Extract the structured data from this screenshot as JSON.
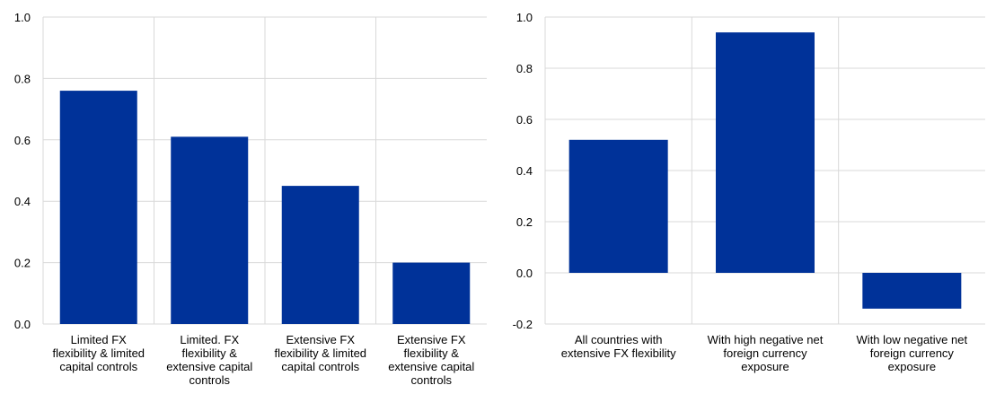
{
  "chart_data": [
    {
      "type": "bar",
      "title": "",
      "xlabel": "",
      "ylabel": "",
      "ylim": [
        0,
        1.0
      ],
      "yticks": [
        "0.0",
        "0.2",
        "0.4",
        "0.6",
        "0.8",
        "1.0"
      ],
      "categories": [
        [
          "Limited FX",
          "flexibility & limited",
          "capital controls"
        ],
        [
          "Limited. FX",
          "flexibility &",
          "extensive capital",
          "controls"
        ],
        [
          "Extensive FX",
          "flexibility & limited",
          "capital controls"
        ],
        [
          "Extensive FX",
          "flexibility &",
          "extensive capital",
          "controls"
        ]
      ],
      "values": [
        0.76,
        0.61,
        0.45,
        0.2
      ],
      "bar_color": "#003299",
      "grid": "vertical separators and horizontal gridlines"
    },
    {
      "type": "bar",
      "title": "",
      "xlabel": "",
      "ylabel": "",
      "ylim": [
        -0.2,
        1.0
      ],
      "yticks": [
        "-0.2",
        "0.0",
        "0.2",
        "0.4",
        "0.6",
        "0.8",
        "1.0"
      ],
      "categories": [
        [
          "All countries with",
          "extensive FX flexibility"
        ],
        [
          "With high negative net",
          "foreign currency",
          "exposure"
        ],
        [
          "With low negative net",
          "foreign currency",
          "exposure"
        ]
      ],
      "values": [
        0.52,
        0.94,
        -0.14
      ],
      "bar_color": "#003299",
      "grid": "vertical separators and horizontal gridlines"
    }
  ]
}
